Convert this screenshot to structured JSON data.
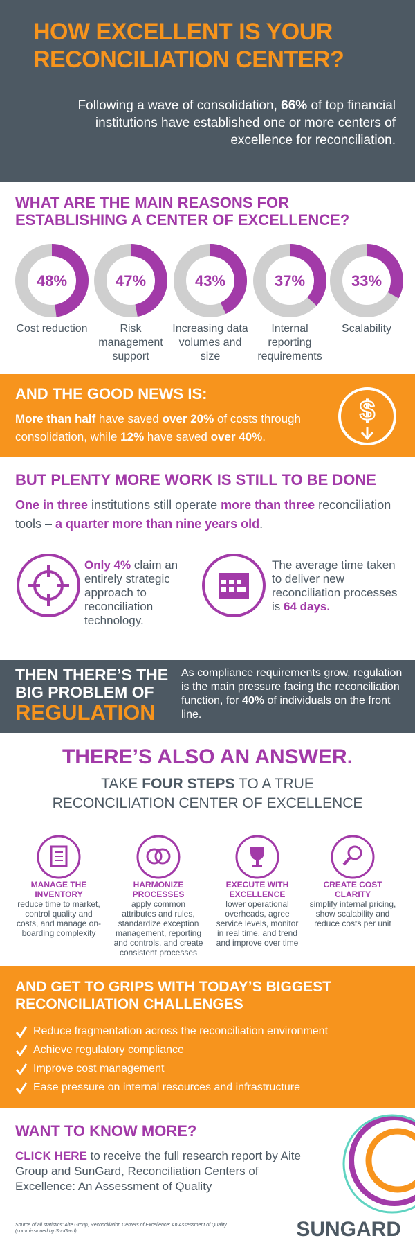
{
  "header": {
    "title": "HOW EXCELLENT IS YOUR RECONCILIATION CENTER?",
    "intro": [
      {
        "text": "Following a wave of consolidation, "
      },
      {
        "text": "66%",
        "bold": true
      },
      {
        "text": " of top financial institutions have established one or more centers of excellence for reconciliation."
      }
    ]
  },
  "reasons": {
    "heading": "WHAT ARE THE MAIN REASONS FOR ESTABLISHING A CENTER OF EXCELLENCE?",
    "items": [
      {
        "value": 48,
        "value_label": "48%",
        "label": "Cost reduction"
      },
      {
        "value": 47,
        "value_label": "47%",
        "label": "Risk management support"
      },
      {
        "value": 43,
        "value_label": "43%",
        "label": "Increasing data volumes and size"
      },
      {
        "value": 37,
        "value_label": "37%",
        "label": "Internal reporting requirements"
      },
      {
        "value": 33,
        "value_label": "33%",
        "label": "Scalability"
      }
    ]
  },
  "good_news": {
    "heading": "AND THE GOOD NEWS IS:",
    "body": [
      {
        "text": "More than half",
        "bold": true
      },
      {
        "text": " have saved "
      },
      {
        "text": "over 20%",
        "bold": true
      },
      {
        "text": " of costs through consolidation, while "
      },
      {
        "text": "12%",
        "bold": true
      },
      {
        "text": " have saved "
      },
      {
        "text": "over 40%",
        "bold": true
      },
      {
        "text": "."
      }
    ]
  },
  "work": {
    "heading": "BUT PLENTY MORE WORK IS STILL TO BE DONE",
    "body": [
      {
        "text": "One in three",
        "bold": true
      },
      {
        "text": " institutions still operate "
      },
      {
        "text": "more than three",
        "bold": true
      },
      {
        "text": " reconciliation tools – "
      },
      {
        "text": "a quarter more than nine years old",
        "bold": true
      },
      {
        "text": "."
      }
    ],
    "facts": [
      [
        {
          "text": "Only 4%",
          "bold": true
        },
        {
          "text": " claim an entirely strategic approach to reconciliation technology."
        }
      ],
      [
        {
          "text": "The average time taken to deliver new reconciliation processes is "
        },
        {
          "text": "64 days.",
          "bold": true
        }
      ]
    ]
  },
  "regulation": {
    "heading": [
      "THEN THERE’S THE",
      "BIG PROBLEM OF"
    ],
    "highlight": "REGULATION",
    "body": [
      {
        "text": "As compliance requirements grow, regulation is the main pressure facing the reconciliation function, for "
      },
      {
        "text": "40%",
        "bold": true
      },
      {
        "text": " of individuals on the front line."
      }
    ]
  },
  "answer": {
    "heading": "THERE’S ALSO AN ANSWER.",
    "subheading": [
      {
        "text": "TAKE "
      },
      {
        "text": "FOUR STEPS",
        "bold": true
      },
      {
        "text": " TO A TRUE RECONCILIATION CENTER OF EXCELLENCE"
      }
    ],
    "steps": [
      {
        "title": "MANAGE THE INVENTORY",
        "text": "reduce time to market, control quality and costs, and manage on-boarding complexity"
      },
      {
        "title": "HARMONIZE PROCESSES",
        "text": "apply common attributes and rules, standardize exception management, reporting and controls, and create consistent processes"
      },
      {
        "title": "EXECUTE WITH EXCELLENCE",
        "text": "lower operational overheads, agree service levels, monitor in real time, and trend and improve over time"
      },
      {
        "title": "CREATE COST CLARITY",
        "text": "simplify internal pricing, show scalability and reduce costs per unit"
      }
    ]
  },
  "challenges": {
    "heading": "AND GET TO GRIPS WITH TODAY’S BIGGEST RECONCILIATION CHALLENGES",
    "items": [
      "Reduce fragmentation across the reconciliation environment",
      "Achieve regulatory compliance",
      "Improve cost management",
      "Ease pressure on internal resources and infrastructure"
    ]
  },
  "more": {
    "heading": "WANT TO KNOW MORE?",
    "body": [
      {
        "text": "CLICK HERE",
        "bold": true,
        "link": true
      },
      {
        "text": " to receive the full research report by Aite Group and SunGard, Reconciliation Centers of Excellence: An Assessment of Quality"
      }
    ],
    "source": "Source of all statistics: Aite Group, Reconciliation Centers of Excellence: An Assessment of Quality (commissioned by SunGard)",
    "logo": "SUNGARD"
  }
}
